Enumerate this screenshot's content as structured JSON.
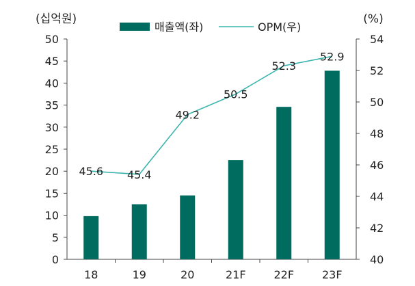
{
  "chart_data": {
    "type": "bar",
    "categories": [
      "18",
      "19",
      "20",
      "21F",
      "22F",
      "23F"
    ],
    "left_axis": {
      "unit": "(십억원)",
      "range": [
        0,
        50
      ],
      "ticks": [
        "0",
        "5",
        "10",
        "15",
        "20",
        "25",
        "30",
        "35",
        "40",
        "45",
        "50"
      ]
    },
    "right_axis": {
      "unit": "(%)",
      "range": [
        40,
        54
      ],
      "ticks": [
        "40",
        "42",
        "44",
        "46",
        "48",
        "50",
        "52",
        "54"
      ]
    },
    "series": [
      {
        "name": "매출액(좌)",
        "type": "bar",
        "axis": "left",
        "color": "#006b5f",
        "values": [
          9.8,
          12.5,
          14.5,
          22.5,
          34.6,
          42.8
        ]
      },
      {
        "name": "OPM(우)",
        "type": "line",
        "axis": "right",
        "color": "#3bb5ae",
        "values": [
          45.6,
          45.4,
          49.2,
          50.5,
          52.3,
          52.9
        ],
        "labels": [
          "45.6",
          "45.4",
          "49.2",
          "50.5",
          "52.3",
          "52.9"
        ]
      }
    ],
    "legend_position": "top-center",
    "grid": false
  }
}
